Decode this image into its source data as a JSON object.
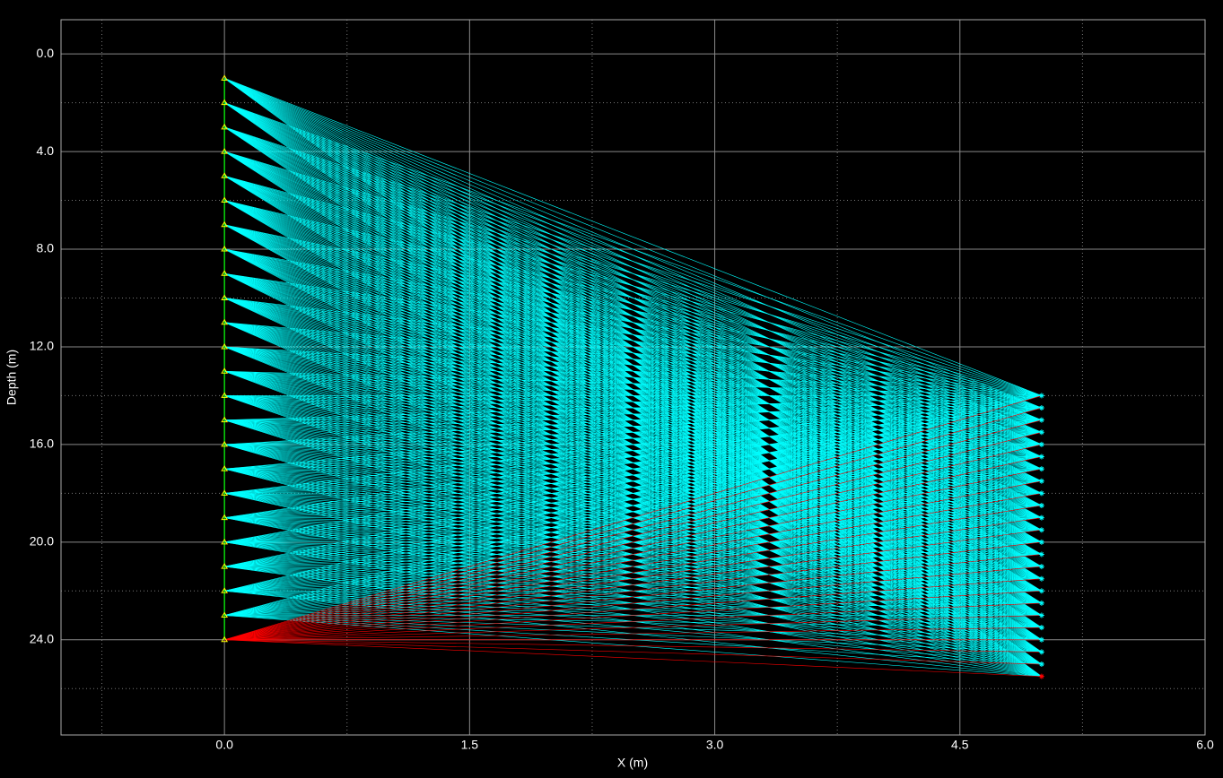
{
  "chart_data": {
    "type": "raypaths",
    "xlabel": "X (m)",
    "ylabel": "Depth (m)",
    "xlim": [
      -1.0,
      6.0
    ],
    "ylim": [
      -1.4,
      27.9
    ],
    "y_inverted": true,
    "grid": true,
    "xticks": [
      {
        "value": 0,
        "label": "0.0"
      },
      1.5,
      {
        "value": 3,
        "label": "3.0"
      },
      4.5,
      {
        "value": 6,
        "label": "6.0"
      }
    ],
    "yticks": [
      {
        "value": 0,
        "label": "0.0"
      },
      {
        "value": 4,
        "label": "4.0"
      },
      {
        "value": 8,
        "label": "8.0"
      },
      {
        "value": 12,
        "label": "12.0"
      },
      {
        "value": 16,
        "label": "16.0"
      },
      {
        "value": 20,
        "label": "20.0"
      },
      {
        "value": 24,
        "label": "24.0"
      }
    ],
    "xminorticks": [
      -0.75,
      0.75,
      2.25,
      3.75,
      5.25
    ],
    "yminorticks": [
      2,
      6,
      10,
      14,
      18,
      22,
      26
    ],
    "sources": {
      "color": "#ffff00",
      "x": [
        0,
        0,
        0,
        0,
        0,
        0,
        0,
        0,
        0,
        0,
        0,
        0,
        0,
        0,
        0,
        0,
        0,
        0,
        0,
        0,
        0,
        0,
        0,
        0
      ],
      "y": [
        1,
        2,
        3,
        4,
        5,
        6,
        7,
        8,
        9,
        10,
        11,
        12,
        13,
        14,
        15,
        16,
        17,
        18,
        19,
        20,
        21,
        22,
        23,
        24
      ]
    },
    "receivers": {
      "color": "#00ffff",
      "x": [
        5,
        5,
        5,
        5,
        5,
        5,
        5,
        5,
        5,
        5,
        5,
        5,
        5,
        5,
        5,
        5,
        5,
        5,
        5,
        5,
        5,
        5,
        5,
        5
      ],
      "y": [
        14,
        14.5,
        15,
        15.5,
        16,
        16.5,
        17,
        17.5,
        18,
        18.5,
        19,
        19.5,
        20,
        20.5,
        21,
        21.5,
        22,
        22.5,
        23,
        23.5,
        24,
        24.5,
        25,
        25.5
      ]
    },
    "ray_color": "#00ffff",
    "last_source_ray_color": "#ff0000"
  }
}
